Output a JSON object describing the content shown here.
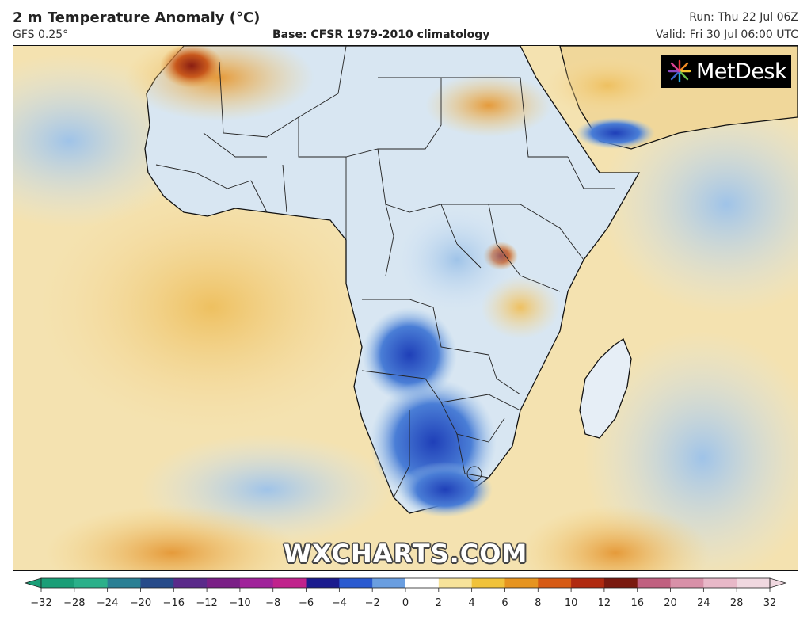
{
  "header": {
    "title": "2 m Temperature Anomaly (°C)",
    "model": "GFS 0.25°",
    "base": "Base: CFSR 1979-2010 climatology",
    "run": "Run: Thu 22 Jul 06Z",
    "valid": "Valid: Fri 30 Jul 06:00 UTC"
  },
  "logo": {
    "text": "MetDesk",
    "icon": "starburst-logo-icon"
  },
  "watermark": "WXCHARTS.COM",
  "colorbar": {
    "ticks": [
      "−32",
      "−28",
      "−24",
      "−20",
      "−16",
      "−12",
      "−10",
      "−8",
      "−6",
      "−4",
      "−2",
      "0",
      "2",
      "4",
      "6",
      "8",
      "10",
      "12",
      "16",
      "20",
      "24",
      "28",
      "32"
    ],
    "colors": [
      "#1a9e77",
      "#2bb08a",
      "#2a7f94",
      "#274b8a",
      "#5a2a8a",
      "#7a1f86",
      "#a0229a",
      "#c0228c",
      "#1b1b8e",
      "#2a5ad0",
      "#6a9ee0",
      "#ffffff",
      "#f7e39a",
      "#f0c23a",
      "#e69420",
      "#d65a14",
      "#b02a10",
      "#7a1a10",
      "#c06080",
      "#d890a8",
      "#e8b8c8",
      "#f0d8e0"
    ],
    "unit": "°C"
  }
}
